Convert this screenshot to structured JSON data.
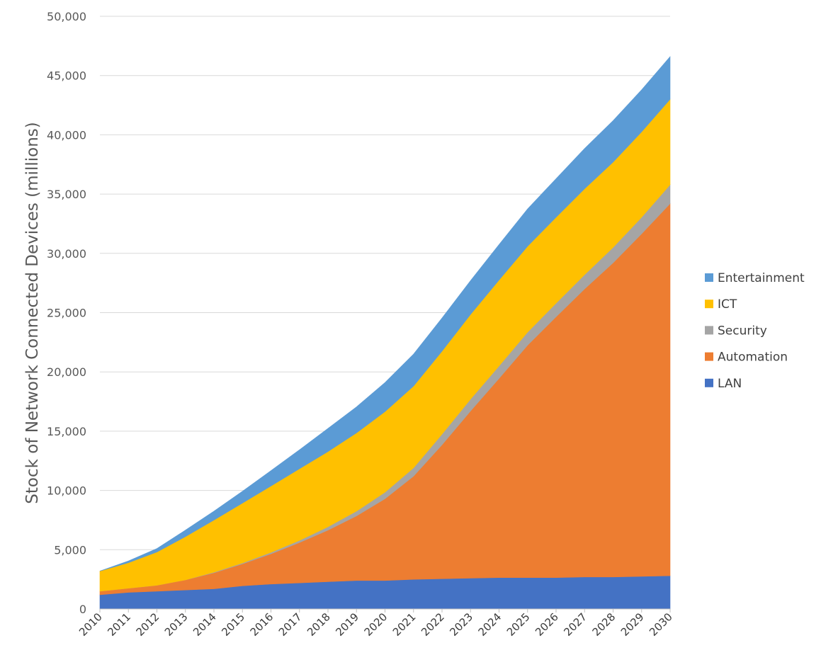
{
  "chart_data": {
    "type": "area",
    "stacked": true,
    "title": "",
    "xlabel": "",
    "ylabel": "Stock of Network Connected Devices (millions)",
    "ylim": [
      0,
      50000
    ],
    "y_ticks": [
      "0",
      "5,000",
      "10,000",
      "15,000",
      "20,000",
      "25,000",
      "30,000",
      "35,000",
      "40,000",
      "45,000",
      "50,000"
    ],
    "y_tick_values": [
      0,
      5000,
      10000,
      15000,
      20000,
      25000,
      30000,
      35000,
      40000,
      45000,
      50000
    ],
    "x": [
      "2010",
      "2011",
      "2012",
      "2013",
      "2014",
      "2015",
      "2016",
      "2017",
      "2018",
      "2019",
      "2020",
      "2021",
      "2022",
      "2023",
      "2024",
      "2025",
      "2026",
      "2027",
      "2028",
      "2029",
      "2030"
    ],
    "grid": true,
    "legend_position": "right",
    "series": [
      {
        "name": "LAN",
        "color": "#4472C4",
        "values": [
          1200,
          1400,
          1500,
          1600,
          1700,
          1950,
          2100,
          2200,
          2300,
          2400,
          2400,
          2500,
          2550,
          2600,
          2650,
          2650,
          2650,
          2700,
          2700,
          2750,
          2800
        ]
      },
      {
        "name": "Automation",
        "color": "#ED7D31",
        "values": [
          300,
          350,
          500,
          850,
          1350,
          1850,
          2550,
          3400,
          4350,
          5450,
          6900,
          8700,
          11300,
          14100,
          16800,
          19600,
          22000,
          24300,
          26500,
          28900,
          31400
        ]
      },
      {
        "name": "Security",
        "color": "#A5A5A5",
        "values": [
          0,
          0,
          0,
          0,
          50,
          80,
          120,
          180,
          280,
          400,
          550,
          700,
          900,
          1000,
          1050,
          1100,
          1150,
          1200,
          1300,
          1400,
          1600
        ]
      },
      {
        "name": "ICT",
        "color": "#FFC000",
        "values": [
          1700,
          2150,
          2800,
          3650,
          4400,
          5050,
          5600,
          6050,
          6350,
          6600,
          6800,
          6900,
          7000,
          7150,
          7250,
          7250,
          7250,
          7250,
          7200,
          7200,
          7200
        ]
      },
      {
        "name": "Entertainment",
        "color": "#5B9BD5",
        "values": [
          0,
          150,
          300,
          550,
          750,
          1000,
          1300,
          1600,
          1950,
          2200,
          2450,
          2700,
          2800,
          2850,
          3000,
          3150,
          3250,
          3400,
          3500,
          3550,
          3600
        ]
      }
    ]
  }
}
